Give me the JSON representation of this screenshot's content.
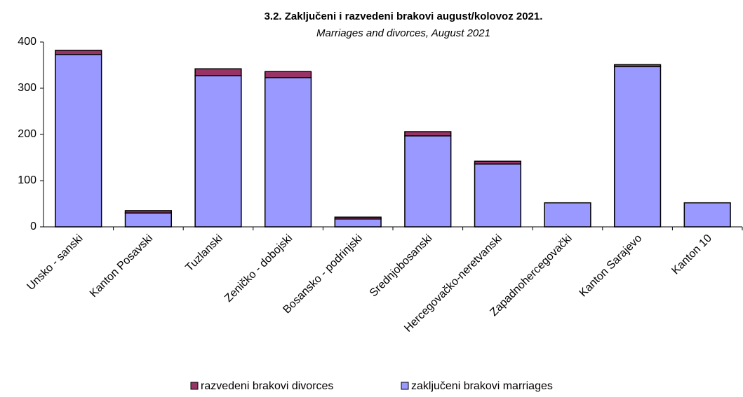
{
  "chart_data": {
    "type": "stacked_bar",
    "title": "3.2. Zaključeni i razvedeni brakovi august/kolovoz 2021.",
    "subtitle": "Marriages and divorces, August 2021",
    "categories": [
      "Unsko - sanski",
      "Kanton Posavski",
      "Tuzlanski",
      "Zeničko - dobojski",
      "Bosansko - podrinjski",
      "Srednjobosanski",
      "Hercegovačko-neretvanski",
      "Zapadnohercegovački",
      "Kanton Sarajevo",
      "Kanton 10"
    ],
    "series": [
      {
        "name": "razvedeni brakovi divorces",
        "color": "#993366",
        "values": [
          9,
          5,
          15,
          13,
          4,
          9,
          6,
          0,
          4,
          0
        ]
      },
      {
        "name": "zaključeni brakovi marriages",
        "color": "#9999ff",
        "values": [
          373,
          30,
          327,
          323,
          17,
          197,
          136,
          52,
          347,
          52
        ]
      }
    ],
    "ylim": [
      0,
      400
    ],
    "yticks": [
      0,
      100,
      200,
      300,
      400
    ],
    "grid": false
  }
}
